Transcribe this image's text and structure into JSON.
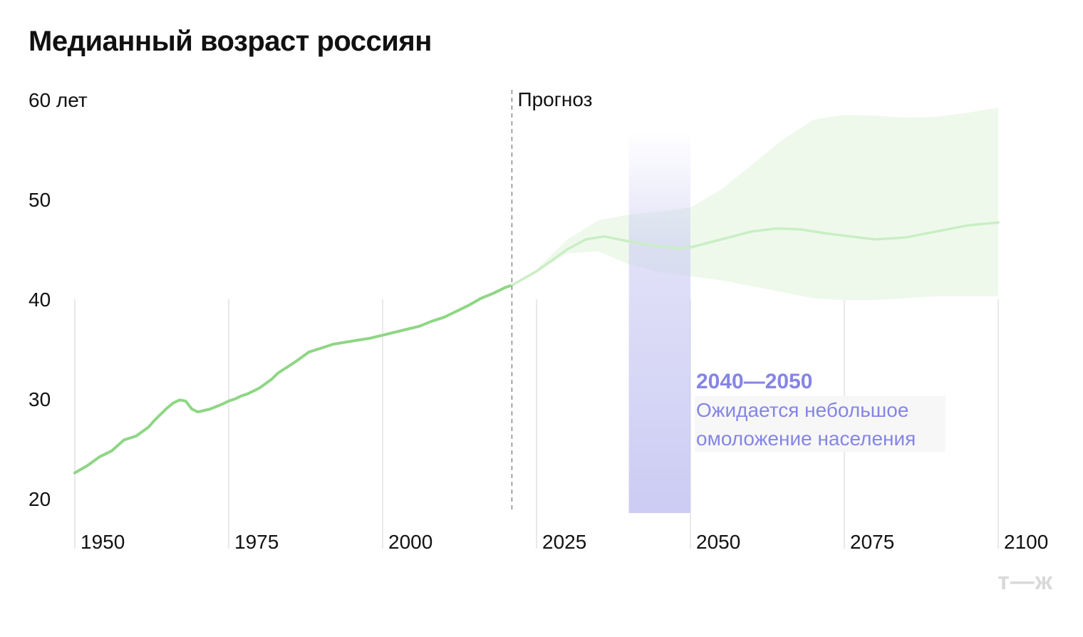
{
  "title": "Медианный возраст россиян",
  "logo": "т—ж",
  "chart_data": {
    "type": "line",
    "title": "Медианный возраст россиян",
    "yunit_label": "60 лет",
    "y_ticks": [
      "20",
      "30",
      "40",
      "50"
    ],
    "ylim": [
      20,
      60
    ],
    "xlim": [
      1950,
      2100
    ],
    "x_ticks": [
      "1950",
      "1975",
      "2000",
      "2025",
      "2050",
      "2075",
      "2100"
    ],
    "grid": "vertical",
    "forecast_start": 2021,
    "forecast_label": "Прогноз",
    "historical": {
      "x": [
        1950,
        1952,
        1954,
        1956,
        1958,
        1960,
        1962,
        1963,
        1965,
        1966,
        1967,
        1968,
        1969,
        1970,
        1972,
        1974,
        1975,
        1976,
        1977,
        1978,
        1979,
        1980,
        1982,
        1983,
        1984,
        1986,
        1988,
        1990,
        1992,
        1994,
        1996,
        1998,
        2000,
        2002,
        2004,
        2006,
        2008,
        2010,
        2012,
        2014,
        2016,
        2018,
        2020,
        2021
      ],
      "y": [
        22.6,
        23.3,
        24.2,
        24.8,
        25.9,
        26.3,
        27.2,
        27.9,
        29.1,
        29.6,
        29.9,
        29.8,
        29.0,
        28.7,
        29.0,
        29.5,
        29.8,
        30.0,
        30.3,
        30.5,
        30.8,
        31.1,
        32.0,
        32.6,
        33.0,
        33.8,
        34.7,
        35.1,
        35.5,
        35.7,
        35.9,
        36.1,
        36.4,
        36.7,
        37.0,
        37.3,
        37.8,
        38.2,
        38.8,
        39.4,
        40.1,
        40.6,
        41.2,
        41.4
      ]
    },
    "forecast_median": {
      "x": [
        2021,
        2025,
        2030,
        2033,
        2036,
        2040,
        2045,
        2048,
        2050,
        2055,
        2060,
        2064,
        2068,
        2072,
        2076,
        2080,
        2085,
        2090,
        2095,
        2100
      ],
      "y": [
        41.4,
        42.8,
        45.0,
        46.0,
        46.3,
        45.8,
        45.3,
        45.1,
        45.2,
        46.0,
        46.8,
        47.1,
        47.0,
        46.6,
        46.3,
        46.0,
        46.2,
        46.8,
        47.4,
        47.7
      ]
    },
    "forecast_band": {
      "x": [
        2021,
        2025,
        2030,
        2035,
        2040,
        2045,
        2050,
        2055,
        2060,
        2065,
        2070,
        2075,
        2080,
        2085,
        2090,
        2095,
        2100
      ],
      "upper": [
        41.4,
        43.0,
        46.0,
        47.9,
        48.5,
        48.8,
        49.2,
        51.0,
        53.5,
        56.0,
        58.0,
        58.5,
        58.4,
        58.2,
        58.3,
        58.7,
        59.2
      ],
      "lower": [
        41.4,
        42.7,
        44.6,
        44.8,
        43.5,
        42.7,
        42.3,
        41.9,
        41.3,
        40.7,
        40.1,
        39.9,
        39.9,
        40.1,
        40.3,
        40.3,
        40.3
      ]
    },
    "highlight": {
      "range": [
        2040,
        2050
      ],
      "title": "2040—2050",
      "text_lines": [
        "Ожидается небольшое",
        "омоложение населения"
      ],
      "color": "#8585e6"
    },
    "colors": {
      "line": "#8fd685",
      "forecast_line": "#c9eec3",
      "band": "#eef9ec",
      "grid": "#e2e2e2",
      "highlight": "#c9c9f3"
    }
  }
}
